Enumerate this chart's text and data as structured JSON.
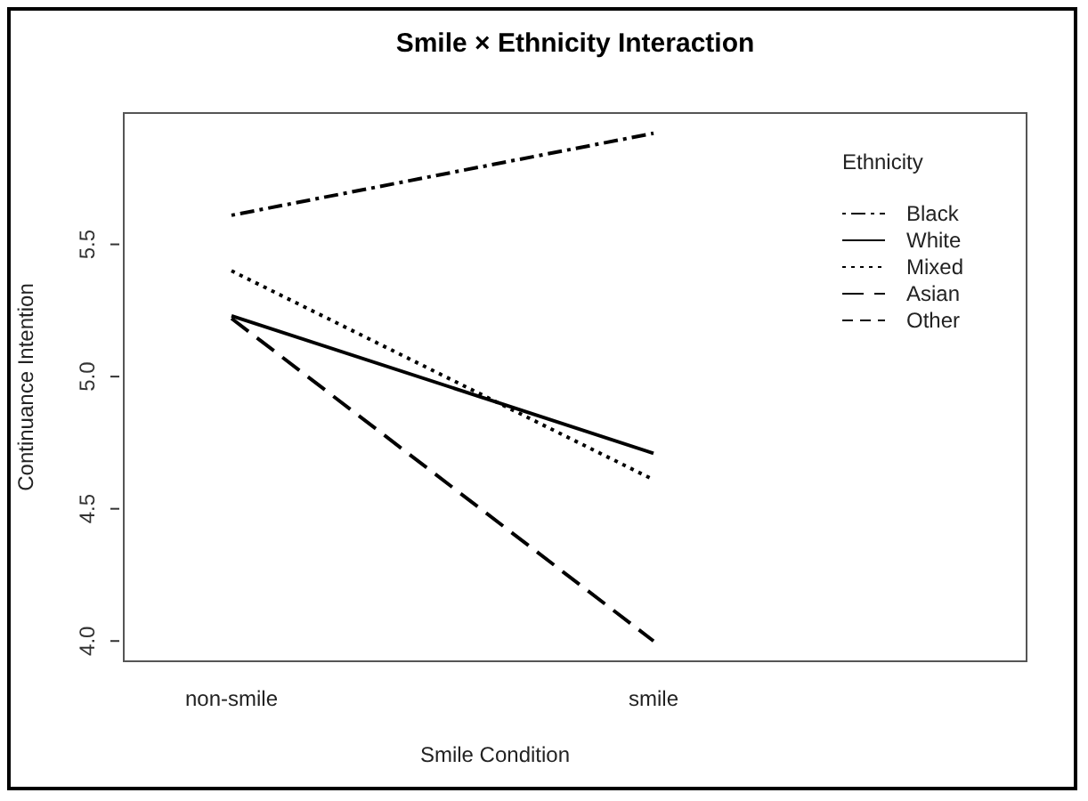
{
  "chart_data": {
    "type": "line",
    "title": "Smile × Ethnicity Interaction",
    "xlabel": "Smile Condition",
    "ylabel": "Continuance Intention",
    "legend_title": "Ethnicity",
    "categories": [
      "non-smile",
      "smile"
    ],
    "series": [
      {
        "name": "Black",
        "color": "#000000",
        "line_style": "dashdot",
        "values": [
          5.61,
          5.92
        ]
      },
      {
        "name": "White",
        "color": "#000000",
        "line_style": "solid",
        "values": [
          5.23,
          4.71
        ]
      },
      {
        "name": "Mixed",
        "color": "#000000",
        "line_style": "dotted",
        "values": [
          5.4,
          4.61
        ]
      },
      {
        "name": "Asian",
        "color": "#000000",
        "line_style": "longdash",
        "values": [
          5.22,
          4.0
        ]
      },
      {
        "name": "Other",
        "color": "#000000",
        "line_style": "dashed",
        "values": [
          null,
          null
        ]
      }
    ],
    "ylim": [
      3.92,
      6.0
    ],
    "yticks": [
      {
        "value": 4,
        "label": "4.0"
      },
      4.5,
      {
        "value": 5,
        "label": "5.0"
      },
      5.5
    ],
    "grid": false,
    "legend": "top right",
    "marker": "none"
  }
}
